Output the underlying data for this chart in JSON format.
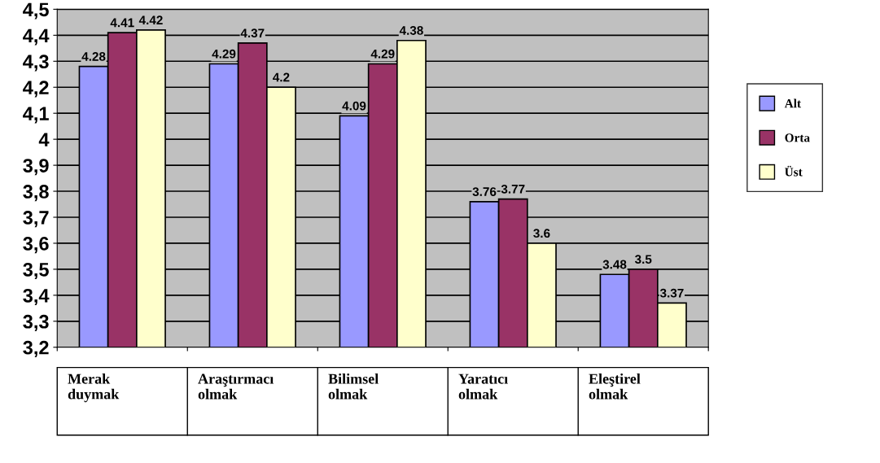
{
  "chart_data": {
    "type": "bar",
    "categories": [
      "Merak duymak",
      "Araştırmacı olmak",
      "Bilimsel olmak",
      "Yaratıcı olmak",
      "Eleştirel olmak"
    ],
    "series": [
      {
        "name": "Alt",
        "color": "#9999ff",
        "values": [
          4.28,
          4.29,
          4.09,
          3.76,
          3.48
        ]
      },
      {
        "name": "Orta",
        "color": "#993366",
        "values": [
          4.41,
          4.37,
          4.29,
          3.77,
          3.5
        ]
      },
      {
        "name": "Üst",
        "color": "#ffffcc",
        "values": [
          4.42,
          4.2,
          4.38,
          3.6,
          3.37
        ]
      }
    ],
    "ylim": [
      3.2,
      4.5
    ],
    "yticks": [
      {
        "value": 3.2,
        "label": "3,2"
      },
      {
        "value": 3.3,
        "label": "3,3"
      },
      {
        "value": 3.4,
        "label": "3,4"
      },
      {
        "value": 3.5,
        "label": "3,5"
      },
      {
        "value": 3.6,
        "label": "3,6"
      },
      {
        "value": 3.7,
        "label": "3,7"
      },
      {
        "value": 3.8,
        "label": "3,8"
      },
      {
        "value": 3.9,
        "label": "3,9"
      },
      {
        "value": 4.0,
        "label": "4"
      },
      {
        "value": 4.1,
        "label": "4,1"
      },
      {
        "value": 4.2,
        "label": "4,2"
      },
      {
        "value": 4.3,
        "label": "4,3"
      },
      {
        "value": 4.4,
        "label": "4,4"
      },
      {
        "value": 4.5,
        "label": "4,5"
      }
    ],
    "grid": "y",
    "legend": "right",
    "data_labels": true
  }
}
